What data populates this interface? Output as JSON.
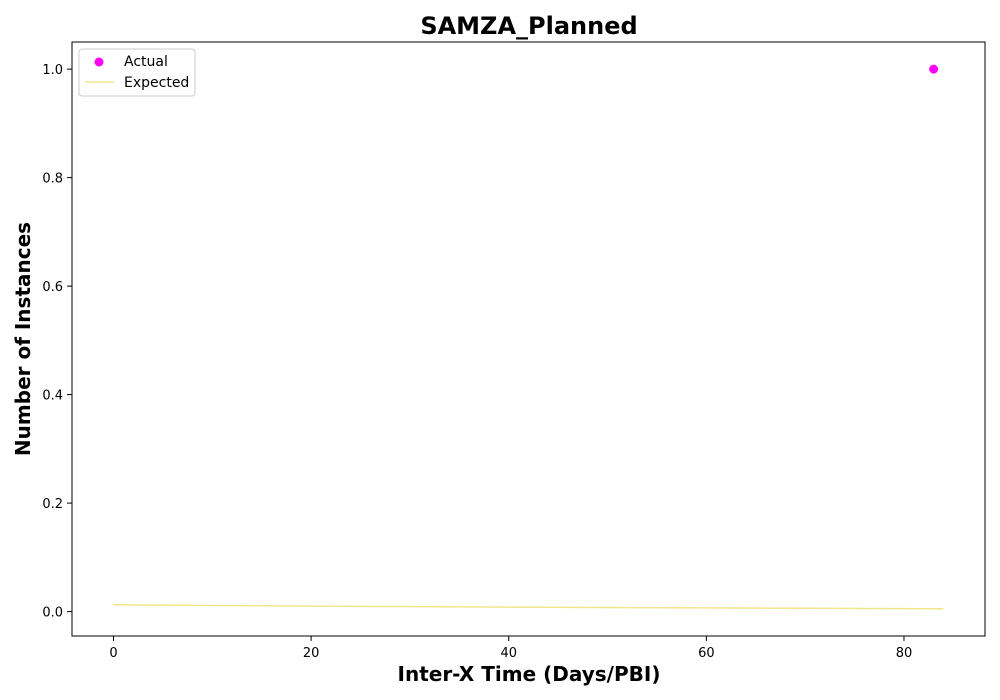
{
  "chart_data": {
    "type": "scatter",
    "title": "SAMZA_Planned",
    "xlabel": "Inter-X Time (Days/PBI)",
    "ylabel": "Number of Instances",
    "xlim": [
      -4.2,
      88.2
    ],
    "ylim": [
      -0.045,
      1.05
    ],
    "xticks": [
      0,
      20,
      40,
      60,
      80
    ],
    "xtick_labels": [
      "0",
      "20",
      "40",
      "60",
      "80"
    ],
    "yticks": [
      0.0,
      0.2,
      0.4,
      0.6,
      0.8,
      1.0
    ],
    "ytick_labels": [
      "0.0",
      "0.2",
      "0.4",
      "0.6",
      "0.8",
      "1.0"
    ],
    "grid": false,
    "legend_position": "upper-left",
    "series": [
      {
        "name": "Actual",
        "type": "scatter",
        "color": "#ff00ff",
        "x": [
          83
        ],
        "y": [
          1.0
        ]
      },
      {
        "name": "Expected",
        "type": "line",
        "color": "#f0e68c",
        "x": [
          0,
          10,
          20,
          30,
          40,
          50,
          60,
          70,
          84
        ],
        "y": [
          0.0125,
          0.0113,
          0.0102,
          0.0092,
          0.0083,
          0.0075,
          0.0068,
          0.0061,
          0.0052
        ]
      }
    ]
  }
}
